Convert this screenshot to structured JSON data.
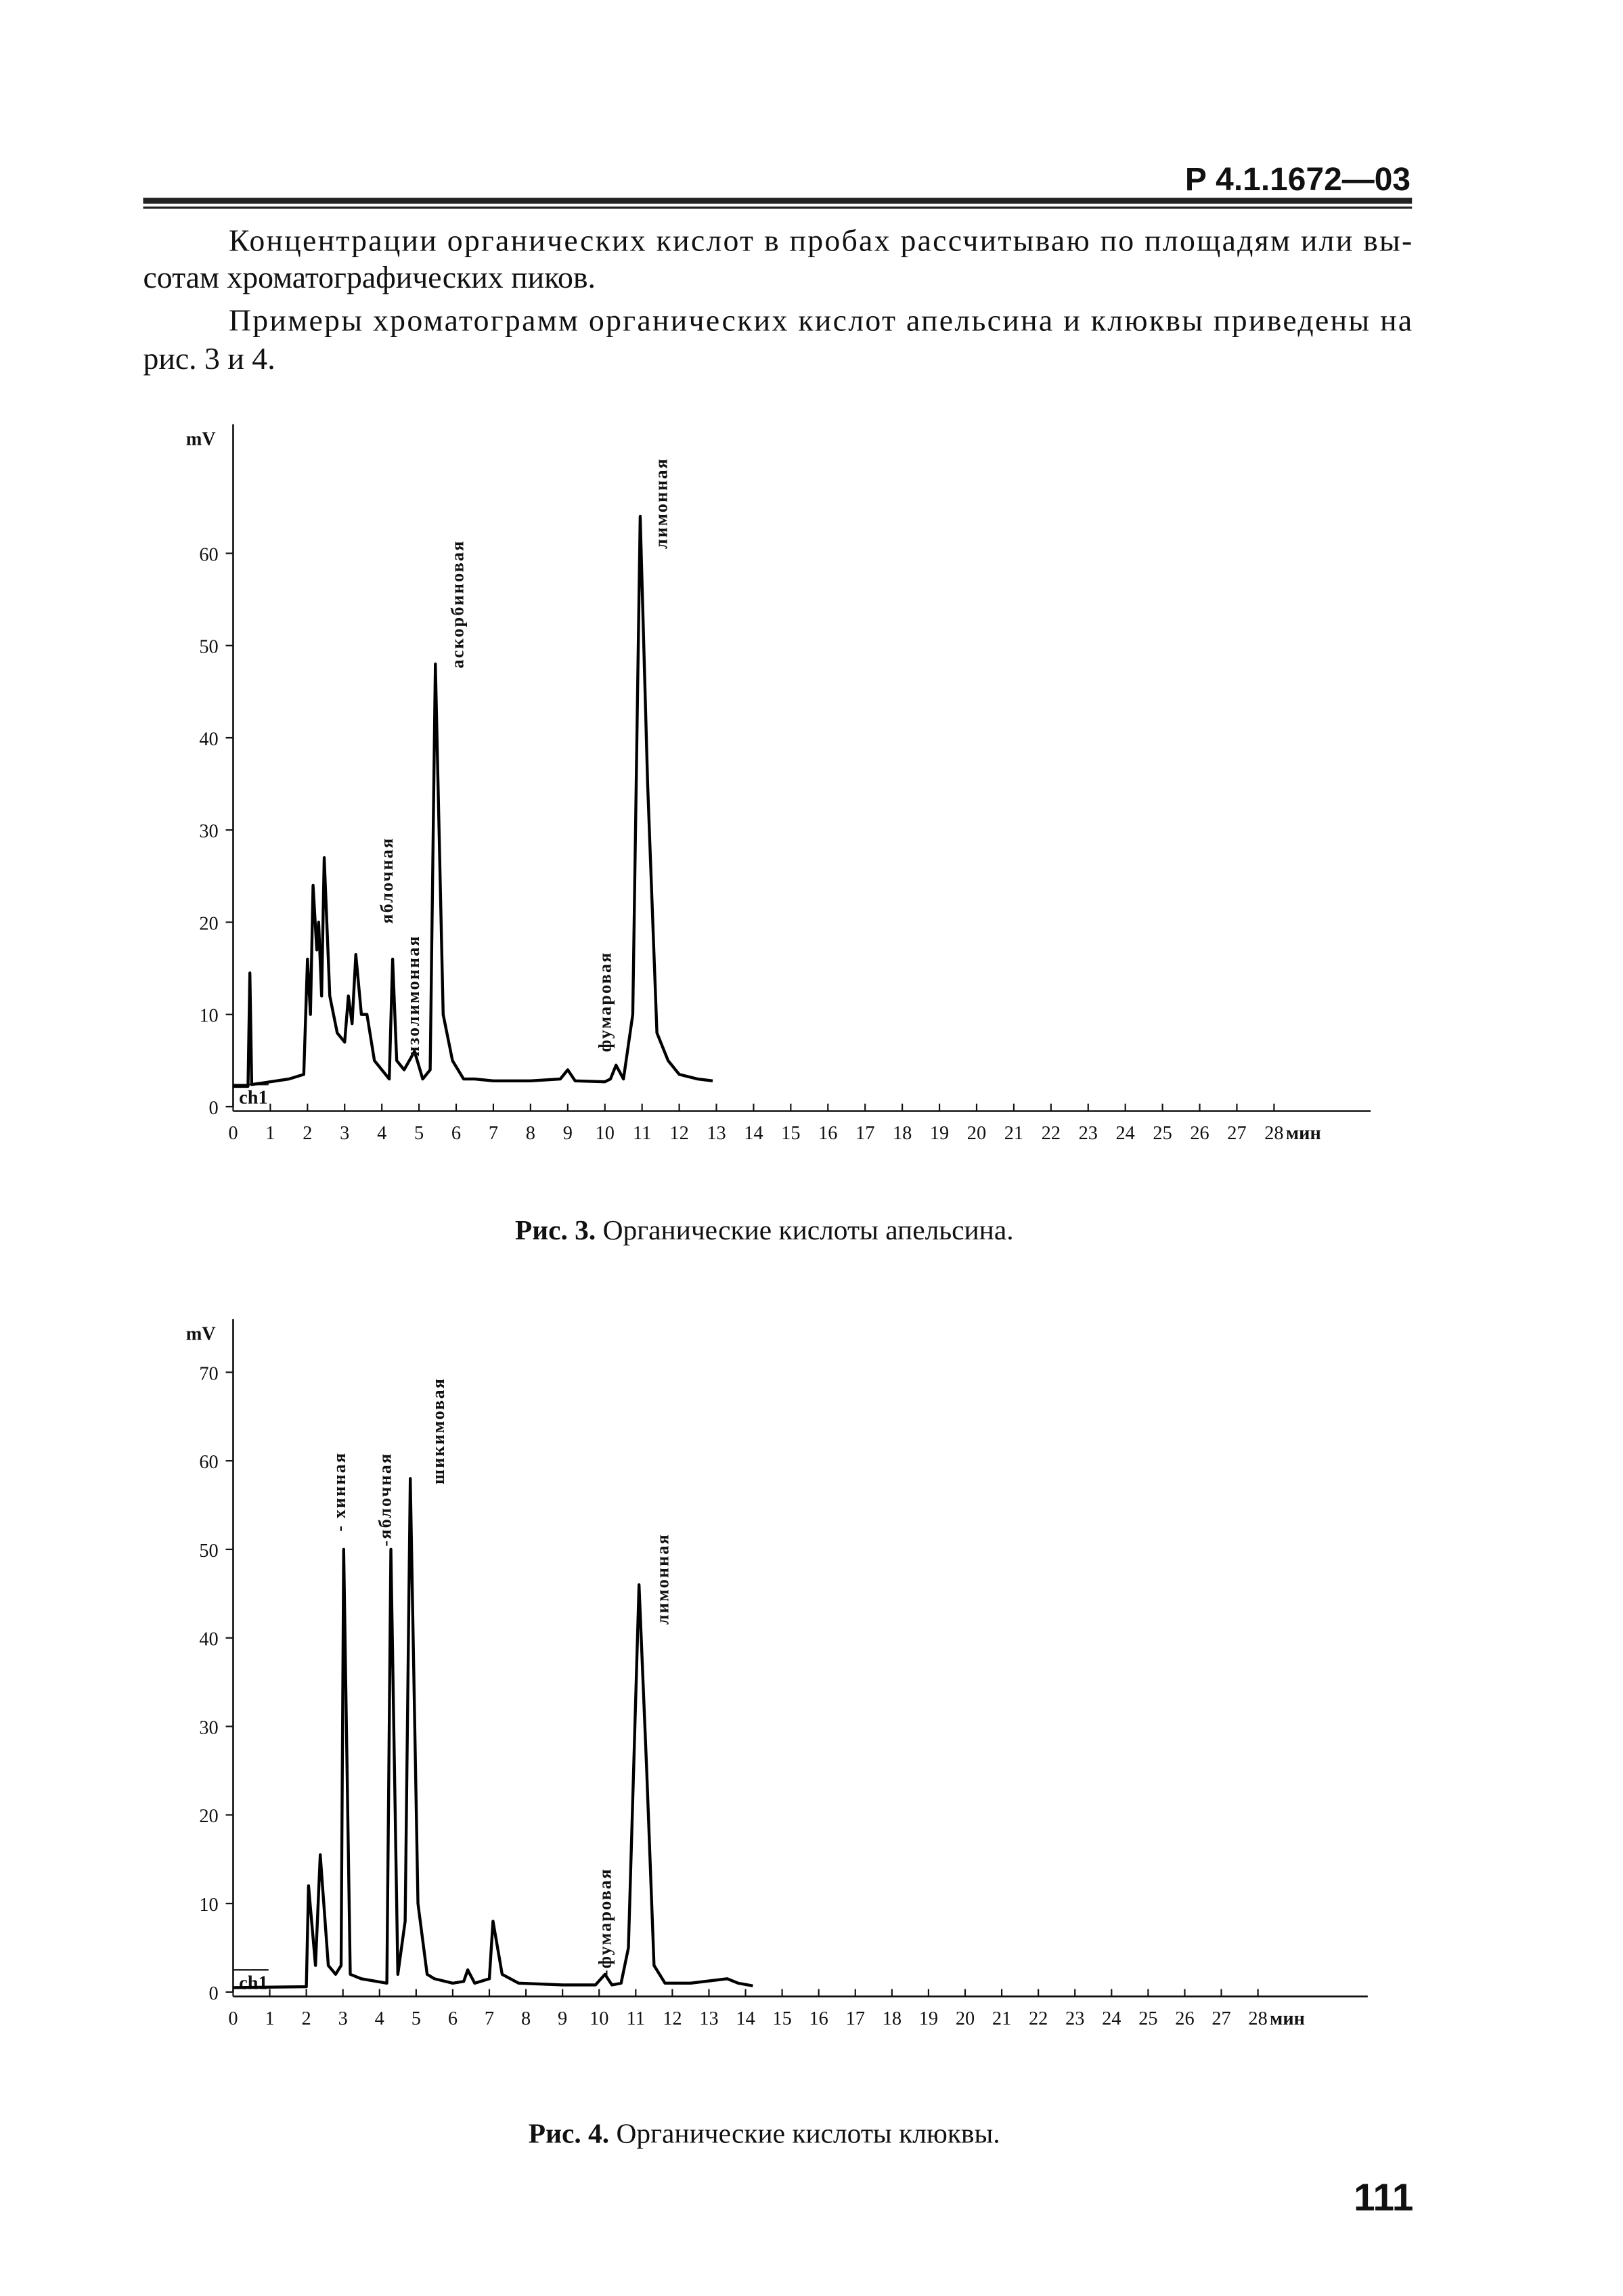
{
  "header": {
    "code": "Р 4.1.1672—03"
  },
  "paragraphs": [
    [
      "Концентрации органических кислот в пробах рассчитываю по площадям или вы-",
      "сотам хроматографических пиков."
    ],
    [
      "Примеры хроматограмм органических кислот апельсина и клюквы приведены на",
      "рис. 3 и 4."
    ]
  ],
  "chart_data": [
    {
      "type": "line",
      "ylabel": "mV",
      "xlabel": "мин",
      "channel": "ch1",
      "caption": {
        "label": "Рис. 3.",
        "text": "Органические кислоты апельсина."
      },
      "xlim": [
        0,
        30.6
      ],
      "ylim": [
        0,
        74
      ],
      "xticks": [
        0,
        1,
        2,
        3,
        4,
        5,
        6,
        7,
        8,
        9,
        10,
        11,
        12,
        13,
        14,
        15,
        16,
        17,
        18,
        19,
        20,
        21,
        22,
        23,
        24,
        25,
        26,
        27,
        28
      ],
      "yticks": [
        0,
        10,
        20,
        30,
        40,
        50,
        60
      ],
      "annotations": [
        "лимонная",
        "аскорбиновая",
        "яблочная",
        "изолимонная",
        "фумаровая"
      ],
      "color": "#000000",
      "x": [
        0,
        0.4,
        0.45,
        0.5,
        1.5,
        1.9,
        2.0,
        2.08,
        2.15,
        2.25,
        2.3,
        2.38,
        2.45,
        2.6,
        2.8,
        3.0,
        3.1,
        3.2,
        3.3,
        3.45,
        3.6,
        3.8,
        4.0,
        4.2,
        4.29,
        4.4,
        4.6,
        4.88,
        5.1,
        5.3,
        5.44,
        5.65,
        5.9,
        6.2,
        6.5,
        7,
        8,
        8.8,
        9.0,
        9.2,
        10,
        10.15,
        10.3,
        10.5,
        10.75,
        10.95,
        11.15,
        11.4,
        11.7,
        12,
        12.5,
        12.9
      ],
      "values": [
        2.2,
        2.2,
        14.5,
        2.4,
        3,
        3.5,
        16,
        10,
        24,
        17,
        20,
        12,
        27,
        12,
        8,
        7,
        12,
        9,
        16.5,
        10,
        10,
        5,
        4,
        3,
        16,
        5,
        4,
        6,
        3,
        4,
        48,
        10,
        5,
        3,
        3,
        2.8,
        2.8,
        3,
        4,
        2.8,
        2.7,
        3,
        4.5,
        3,
        10,
        64,
        35,
        8,
        5,
        3.5,
        3,
        2.8
      ]
    },
    {
      "type": "line",
      "ylabel": "mV",
      "xlabel": "мин",
      "channel": "ch1",
      "caption": {
        "label": "Рис. 4.",
        "text": "Органические кислоты клюквы."
      },
      "xlim": [
        0,
        31
      ],
      "ylim": [
        0,
        76
      ],
      "xticks": [
        0,
        1,
        2,
        3,
        4,
        5,
        6,
        7,
        8,
        9,
        10,
        11,
        12,
        13,
        14,
        15,
        16,
        17,
        18,
        19,
        20,
        21,
        22,
        23,
        24,
        25,
        26,
        27,
        28
      ],
      "yticks": [
        0,
        10,
        20,
        30,
        40,
        50,
        60,
        70
      ],
      "annotations": [
        "- хинная",
        "-яблочная",
        "шикимовая",
        "лимонная",
        "-фумаровая"
      ],
      "color": "#000000",
      "x": [
        0,
        2.0,
        2.06,
        2.25,
        2.38,
        2.6,
        2.8,
        2.95,
        3.02,
        3.2,
        3.5,
        4.2,
        4.31,
        4.5,
        4.7,
        4.84,
        5.05,
        5.3,
        5.5,
        6.0,
        6.3,
        6.41,
        6.6,
        7.0,
        7.1,
        7.35,
        7.8,
        9,
        9.9,
        10.16,
        10.35,
        10.6,
        10.8,
        11.09,
        11.3,
        11.5,
        11.8,
        12.5,
        13.5,
        13.8,
        14.2
      ],
      "values": [
        0.5,
        0.6,
        12,
        3,
        15.5,
        3,
        2,
        3,
        50,
        2,
        1.5,
        1,
        50,
        2,
        8,
        58,
        10,
        2,
        1.5,
        1,
        1.2,
        2.5,
        1,
        1.5,
        8,
        2,
        1,
        0.8,
        0.8,
        2,
        0.8,
        1,
        5,
        46,
        25,
        3,
        1,
        1,
        1.5,
        1,
        0.7
      ]
    }
  ],
  "page_number": "111"
}
